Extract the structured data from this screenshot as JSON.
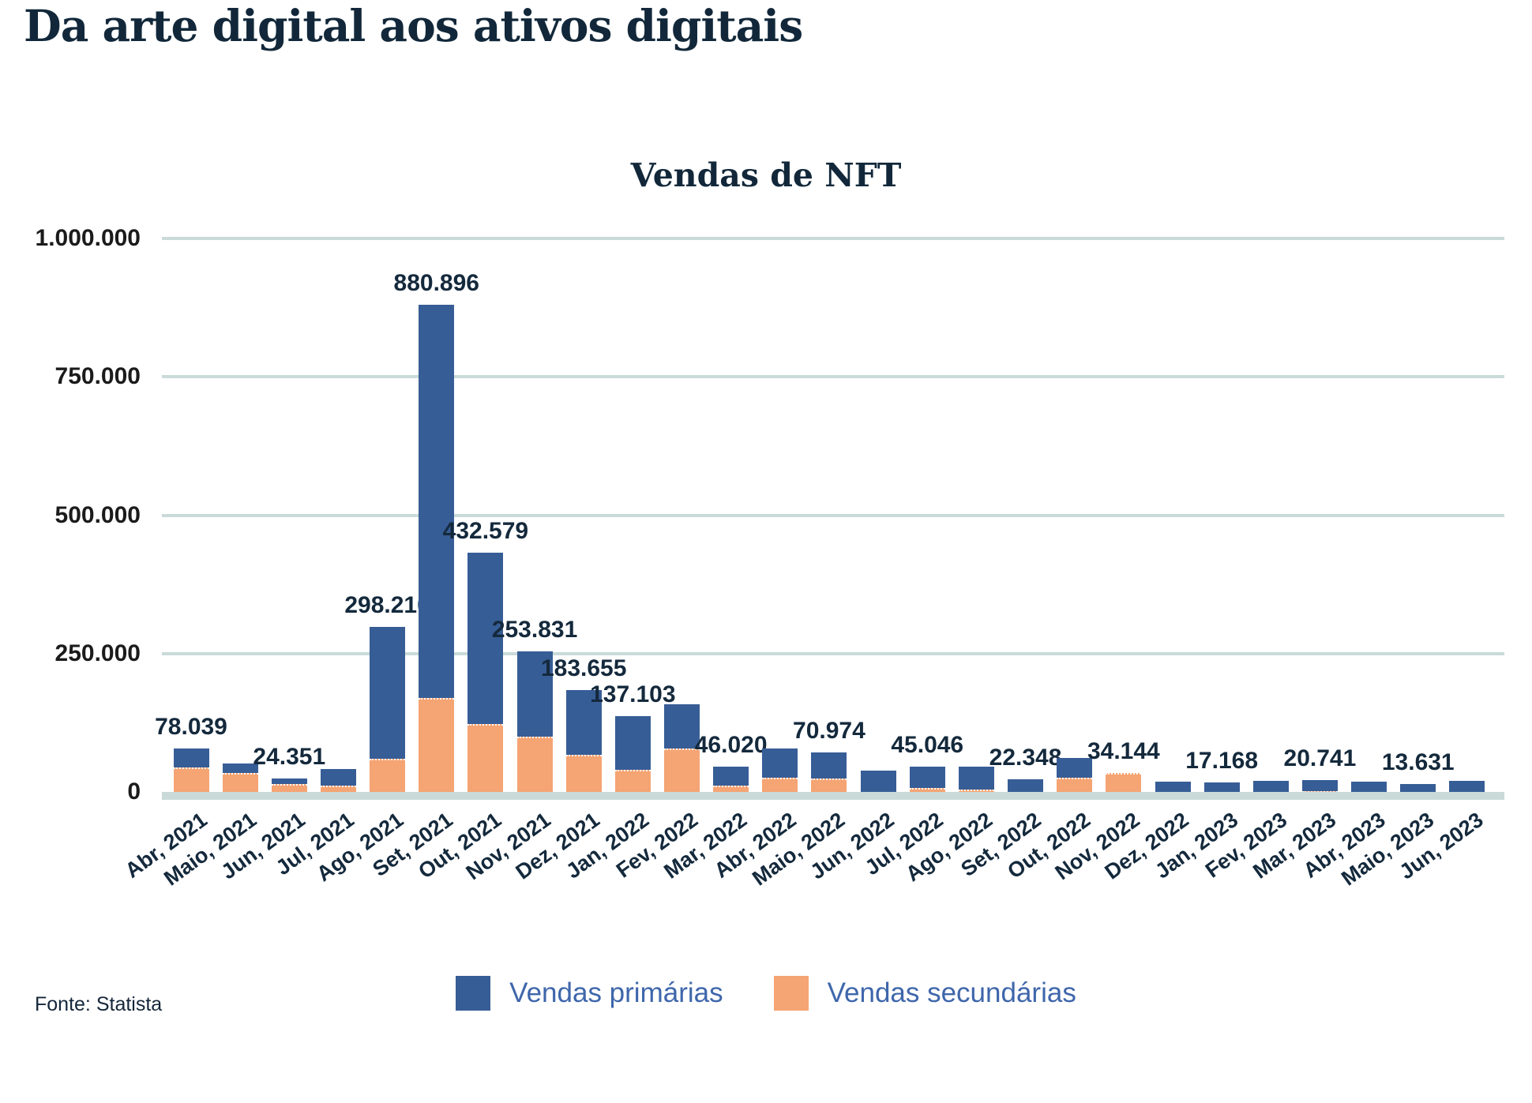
{
  "page": {
    "title": "Da arte digital aos ativos digitais",
    "source": "Fonte: Statista"
  },
  "colors": {
    "primary_blue": "#375d96",
    "secondary_orange": "#f5a473",
    "gridline": "#c9dad9",
    "title_navy": "#12283a",
    "label_navy": "#14293c",
    "axis_text": "#1b1b1b",
    "legend_text": "#3e66ab"
  },
  "chart_data": {
    "type": "bar",
    "stacked": true,
    "title": "Vendas de NFT",
    "categories": [
      "Abr, 2021",
      "Maio, 2021",
      "Jun, 2021",
      "Jul, 2021",
      "Ago, 2021",
      "Set, 2021",
      "Out, 2021",
      "Nov, 2021",
      "Dez, 2021",
      "Jan, 2022",
      "Fev, 2022",
      "Mar, 2022",
      "Abr, 2022",
      "Maio, 2022",
      "Jun, 2022",
      "Jul, 2022",
      "Ago, 2022",
      "Set, 2022",
      "Out, 2022",
      "Nov, 2022",
      "Dez, 2022",
      "Jan, 2023",
      "Fev, 2023",
      "Mar, 2023",
      "Abr, 2023",
      "Maio, 2023",
      "Jun, 2023"
    ],
    "series": [
      {
        "name": "Vendas primárias",
        "color": "#375d96",
        "values": [
          34039,
          18000,
          10351,
          31000,
          238210,
          710896,
          310579,
          153831,
          116655,
          97103,
          80000,
          35020,
          53000,
          46974,
          38000,
          38046,
          41000,
          22348,
          35000,
          0,
          18000,
          17168,
          20000,
          18741,
          18000,
          13631,
          20000
        ]
      },
      {
        "name": "Vendas secundárias",
        "color": "#f5a473",
        "values": [
          44000,
          34000,
          14000,
          11000,
          60000,
          170000,
          122000,
          100000,
          67000,
          40000,
          78000,
          11000,
          25000,
          24000,
          0,
          7000,
          5000,
          0,
          26000,
          34144,
          0,
          0,
          0,
          2000,
          0,
          0,
          0
        ]
      }
    ],
    "totals_labeled": [
      78039,
      null,
      24351,
      null,
      298210,
      880896,
      432579,
      253831,
      183655,
      137103,
      null,
      46020,
      null,
      70974,
      null,
      45046,
      null,
      22348,
      null,
      34144,
      null,
      17168,
      null,
      20741,
      null,
      13631,
      null
    ],
    "data_labels": [
      "78.039",
      "",
      "24.351",
      "",
      "298.210",
      "880.896",
      "432.579",
      "253.831",
      "183.655",
      "137.103",
      "",
      "46.020",
      "",
      "70.974",
      "",
      "45.046",
      "",
      "22.348",
      "",
      "34.144",
      "",
      "17.168",
      "",
      "20.741",
      "",
      "13.631",
      ""
    ],
    "y_ticks": [
      {
        "label": "1.000.000",
        "value": 1000000
      },
      {
        "label": "750.000",
        "value": 750000
      },
      {
        "label": "500.000",
        "value": 500000
      },
      {
        "label": "250.000",
        "value": 250000
      },
      {
        "label": "0",
        "value": 0
      }
    ],
    "ylim": [
      0,
      1000000
    ],
    "grid": true,
    "legend_position": "bottom"
  }
}
